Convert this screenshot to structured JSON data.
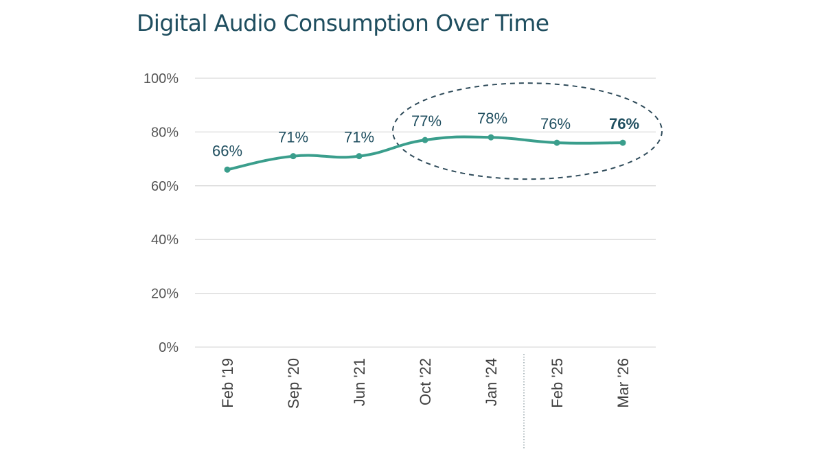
{
  "chart_data": {
    "type": "line",
    "title": "Digital Audio Consumption Over Time",
    "xlabel": "",
    "ylabel": "",
    "categories": [
      "Feb '19",
      "Sep '20",
      "Jun '21",
      "Oct '22",
      "Jan '24",
      "Feb '25",
      "Mar '26"
    ],
    "series": [
      {
        "values": [
          66,
          71,
          71,
          77,
          78,
          76,
          76
        ],
        "data_labels": [
          "66%",
          "71%",
          "71%",
          "77%",
          "78%",
          "76%",
          "76%"
        ]
      }
    ],
    "ylim": [
      0,
      100
    ],
    "y_ticks": [
      0,
      20,
      40,
      60,
      80,
      100
    ],
    "y_tick_labels": [
      "0%",
      "20%",
      "40%",
      "60%",
      "80%",
      "100%"
    ],
    "grid": true,
    "legend": "none",
    "line_style": "smooth",
    "annotations": [
      {
        "type": "dashed-ellipse",
        "encloses_categories": [
          "Oct '22",
          "Jan '24",
          "Feb '25",
          "Mar '26"
        ]
      },
      {
        "type": "dotted-vertical-divider",
        "between_categories": [
          "Jan '24",
          "Feb '25"
        ]
      }
    ],
    "colors": {
      "line": "#3a9e8c",
      "title": "#1f4e5f",
      "data_label": "#1f4e5f",
      "grid": "#d9d9d9",
      "annotation": "#2f4b5a"
    }
  }
}
